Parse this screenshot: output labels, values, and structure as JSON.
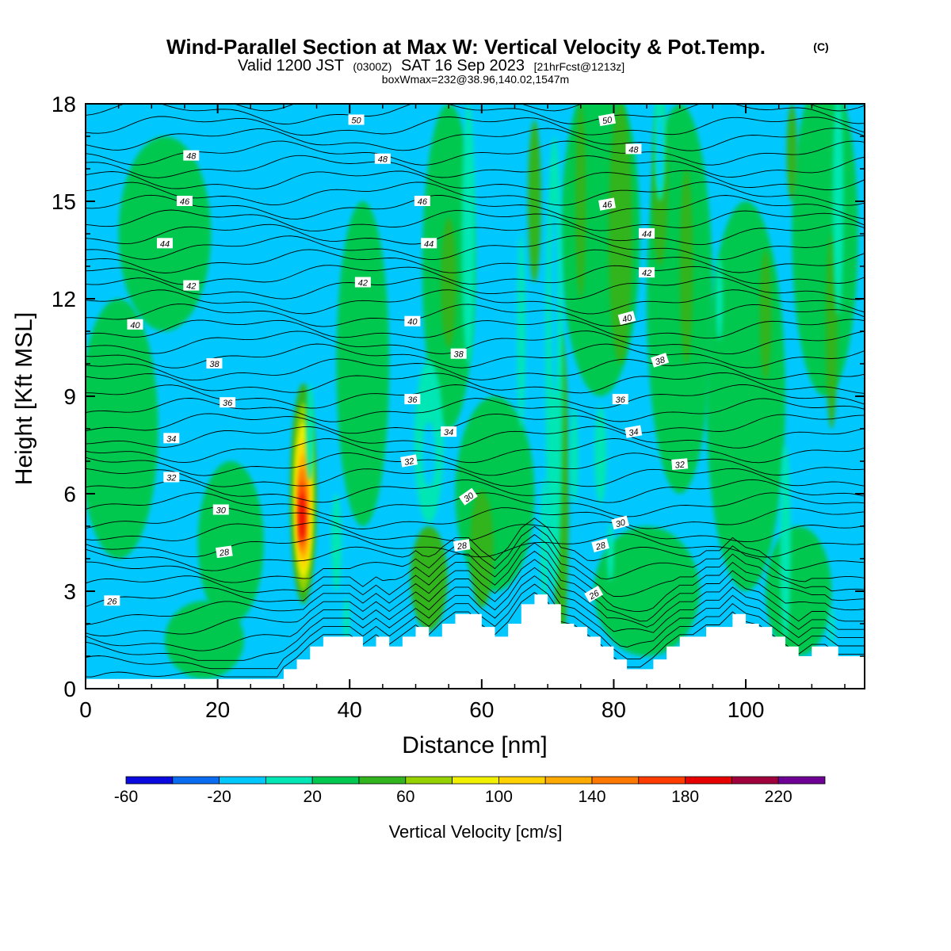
{
  "chart_data": {
    "type": "heatmap",
    "title": "Wind-Parallel Section at Max W: Vertical Velocity & Pot.Temp.",
    "title_mark": "(C)",
    "subtitle_main_a": "Valid 1200 JST",
    "subtitle_small_a": "(0300Z)",
    "subtitle_main_b": "SAT 16 Sep 2023",
    "subtitle_small_b": "[21hrFcst@1213z]",
    "subtitle2": "boxWmax=232@38.96,140.02,1547m",
    "xlabel": "Distance [nm]",
    "ylabel": "Height [Kft MSL]",
    "xlim": [
      0,
      118
    ],
    "ylim": [
      0,
      18
    ],
    "x_ticks": [
      0,
      20,
      40,
      60,
      80,
      100
    ],
    "y_ticks": [
      0,
      3,
      6,
      9,
      12,
      15,
      18
    ],
    "x_tick_labels": [
      "0",
      "20",
      "40",
      "60",
      "80",
      "100"
    ],
    "y_tick_labels": [
      "0",
      "3",
      "6",
      "9",
      "12",
      "15",
      "18"
    ],
    "colorbar": {
      "label": "Vertical Velocity [cm/s]",
      "levels": [
        -60,
        -40,
        -20,
        0,
        20,
        40,
        60,
        80,
        100,
        120,
        140,
        160,
        180,
        200,
        220,
        240
      ],
      "tick_values": [
        -60,
        -20,
        20,
        60,
        100,
        140,
        180,
        220
      ],
      "tick_labels": [
        "-60",
        "-20",
        "20",
        "60",
        "100",
        "140",
        "180",
        "220"
      ],
      "colors": [
        "#0a0ae0",
        "#0a6cf0",
        "#00c8ff",
        "#00e6b4",
        "#00c850",
        "#32b41e",
        "#96d200",
        "#f0f000",
        "#ffd200",
        "#ffaa00",
        "#ff7800",
        "#ff3c00",
        "#e60000",
        "#a0003c",
        "#6e0096"
      ],
      "background_color": "#00c8ff"
    },
    "terrain": [
      [
        0,
        0.3
      ],
      [
        4,
        0.3
      ],
      [
        10,
        0.3
      ],
      [
        20,
        0.3
      ],
      [
        29,
        0.3
      ],
      [
        30,
        0.6
      ],
      [
        32,
        0.9
      ],
      [
        34,
        1.3
      ],
      [
        36,
        1.6
      ],
      [
        40,
        1.6
      ],
      [
        42,
        1.3
      ],
      [
        44,
        1.6
      ],
      [
        46,
        1.3
      ],
      [
        48,
        1.6
      ],
      [
        50,
        1.9
      ],
      [
        52,
        1.6
      ],
      [
        54,
        2.0
      ],
      [
        56,
        2.3
      ],
      [
        58,
        2.3
      ],
      [
        60,
        1.9
      ],
      [
        62,
        1.6
      ],
      [
        64,
        2.0
      ],
      [
        66,
        2.6
      ],
      [
        68,
        2.9
      ],
      [
        70,
        2.6
      ],
      [
        72,
        2.0
      ],
      [
        74,
        1.9
      ],
      [
        76,
        1.6
      ],
      [
        78,
        1.3
      ],
      [
        80,
        0.9
      ],
      [
        82,
        0.6
      ],
      [
        84,
        0.6
      ],
      [
        86,
        0.9
      ],
      [
        88,
        1.3
      ],
      [
        90,
        1.6
      ],
      [
        92,
        1.6
      ],
      [
        94,
        1.9
      ],
      [
        96,
        1.9
      ],
      [
        98,
        2.3
      ],
      [
        100,
        2.0
      ],
      [
        102,
        1.9
      ],
      [
        104,
        1.6
      ],
      [
        106,
        1.3
      ],
      [
        108,
        1.0
      ],
      [
        110,
        1.3
      ],
      [
        112,
        1.3
      ],
      [
        114,
        1.0
      ],
      [
        116,
        1.0
      ],
      [
        118,
        1.0
      ]
    ],
    "w_features": [
      {
        "value": 20,
        "x": 5,
        "y": 8,
        "rx": 6,
        "ry": 4
      },
      {
        "value": 20,
        "x": 12,
        "y": 14,
        "rx": 7,
        "ry": 3
      },
      {
        "value": 20,
        "x": 22,
        "y": 4.5,
        "rx": 5,
        "ry": 2.5
      },
      {
        "value": 20,
        "x": 18,
        "y": 1.5,
        "rx": 6,
        "ry": 1.2
      },
      {
        "value": 20,
        "x": 42,
        "y": 10,
        "rx": 4,
        "ry": 5
      },
      {
        "value": 20,
        "x": 55,
        "y": 13,
        "rx": 4,
        "ry": 5
      },
      {
        "value": 20,
        "x": 62,
        "y": 6,
        "rx": 6,
        "ry": 3
      },
      {
        "value": 20,
        "x": 78,
        "y": 14,
        "rx": 6,
        "ry": 5
      },
      {
        "value": 20,
        "x": 90,
        "y": 12,
        "rx": 5,
        "ry": 6
      },
      {
        "value": 20,
        "x": 100,
        "y": 9,
        "rx": 6,
        "ry": 6
      },
      {
        "value": 20,
        "x": 112,
        "y": 14,
        "rx": 5,
        "ry": 5
      },
      {
        "value": 20,
        "x": 85,
        "y": 3,
        "rx": 8,
        "ry": 2
      },
      {
        "value": 20,
        "x": 108,
        "y": 3,
        "rx": 5,
        "ry": 2
      },
      {
        "value": 40,
        "x": 33,
        "y": 6,
        "rx": 2,
        "ry": 3.4
      },
      {
        "value": 40,
        "x": 55,
        "y": 12.5,
        "rx": 1.2,
        "ry": 2
      },
      {
        "value": 40,
        "x": 52,
        "y": 3.4,
        "rx": 2.8,
        "ry": 1.6
      },
      {
        "value": 40,
        "x": 60,
        "y": 4.3,
        "rx": 1.8,
        "ry": 1.8
      },
      {
        "value": 40,
        "x": 72,
        "y": 6,
        "rx": 1.2,
        "ry": 5
      },
      {
        "value": 40,
        "x": 81,
        "y": 14,
        "rx": 1.8,
        "ry": 4
      },
      {
        "value": 40,
        "x": 91,
        "y": 13,
        "rx": 1.0,
        "ry": 3
      },
      {
        "value": 40,
        "x": 103,
        "y": 11.5,
        "rx": 0.9,
        "ry": 2
      },
      {
        "value": 40,
        "x": 113,
        "y": 11,
        "rx": 0.9,
        "ry": 3
      },
      {
        "value": 40,
        "x": 68,
        "y": 15,
        "rx": 1.0,
        "ry": 2.5
      },
      {
        "value": 40,
        "x": 87,
        "y": 15.5,
        "rx": 1.2,
        "ry": 2.5
      },
      {
        "value": 40,
        "x": 75,
        "y": 15,
        "rx": 0.8,
        "ry": 3
      },
      {
        "value": 40,
        "x": 107,
        "y": 16.5,
        "rx": 0.8,
        "ry": 1.5
      },
      {
        "value": 60,
        "x": 33,
        "y": 5.9,
        "rx": 1.6,
        "ry": 2.9
      },
      {
        "value": 80,
        "x": 33,
        "y": 5.8,
        "rx": 1.3,
        "ry": 2.4
      },
      {
        "value": 100,
        "x": 33,
        "y": 5.7,
        "rx": 1.1,
        "ry": 2.0
      },
      {
        "value": 120,
        "x": 33,
        "y": 5.6,
        "rx": 0.9,
        "ry": 1.6
      },
      {
        "value": 140,
        "x": 32.8,
        "y": 5.5,
        "rx": 0.7,
        "ry": 1.3
      },
      {
        "value": 160,
        "x": 32.8,
        "y": 5.4,
        "rx": 0.5,
        "ry": 1.0
      },
      {
        "value": 180,
        "x": 32.8,
        "y": 5.3,
        "rx": 0.35,
        "ry": 0.7
      },
      {
        "value": 0,
        "x": 34,
        "y": 7.9,
        "rx": 0.6,
        "ry": 1.5
      },
      {
        "value": 0,
        "x": 38,
        "y": 4.5,
        "rx": 0.8,
        "ry": 1.5
      },
      {
        "value": 0,
        "x": 39.5,
        "y": 2.1,
        "rx": 0.5,
        "ry": 0.7
      },
      {
        "value": 0,
        "x": 52,
        "y": 7.6,
        "rx": 2.2,
        "ry": 2.5
      },
      {
        "value": 0,
        "x": 58,
        "y": 14,
        "rx": 1.0,
        "ry": 4
      },
      {
        "value": 0,
        "x": 66,
        "y": 11,
        "rx": 0.6,
        "ry": 3
      },
      {
        "value": 0,
        "x": 71,
        "y": 10,
        "rx": 1.3,
        "ry": 7
      },
      {
        "value": 0,
        "x": 74,
        "y": 7.2,
        "rx": 0.6,
        "ry": 1.5
      },
      {
        "value": 0,
        "x": 78,
        "y": 7.2,
        "rx": 0.9,
        "ry": 1.5
      },
      {
        "value": 0,
        "x": 87,
        "y": 17,
        "rx": 0.9,
        "ry": 2
      },
      {
        "value": 0,
        "x": 96,
        "y": 12,
        "rx": 0.5,
        "ry": 1.3
      },
      {
        "value": 0,
        "x": 106,
        "y": 4.5,
        "rx": 0.8,
        "ry": 3
      },
      {
        "value": 0,
        "x": 114,
        "y": 15,
        "rx": 0.8,
        "ry": 3.5
      },
      {
        "value": 0,
        "x": 113,
        "y": 1.9,
        "rx": 0.4,
        "ry": 0.6
      },
      {
        "value": 0,
        "x": 69.5,
        "y": 4.5,
        "rx": 0.6,
        "ry": 2
      },
      {
        "value": 0,
        "x": 79.5,
        "y": 4.2,
        "rx": 0.5,
        "ry": 0.9
      },
      {
        "value": -20,
        "x": 52,
        "y": 7.2,
        "rx": 1.0,
        "ry": 1.0
      },
      {
        "value": -20,
        "x": 71,
        "y": 12,
        "rx": 0.5,
        "ry": 3
      },
      {
        "value": -20,
        "x": 87,
        "y": 16.5,
        "rx": 0.4,
        "ry": 1.2
      }
    ],
    "theta_contours": [
      26,
      28,
      30,
      32,
      34,
      36,
      38,
      40,
      42,
      44,
      46,
      48,
      50
    ],
    "theta_labels": [
      {
        "text": "26",
        "x": 4,
        "y": 2.7,
        "angle": 0
      },
      {
        "text": "26",
        "x": 77,
        "y": 2.9,
        "angle": -30
      },
      {
        "text": "28",
        "x": 21,
        "y": 4.2,
        "angle": -8
      },
      {
        "text": "28",
        "x": 57,
        "y": 4.4,
        "angle": -8
      },
      {
        "text": "28",
        "x": 78,
        "y": 4.4,
        "angle": -15
      },
      {
        "text": "30",
        "x": 20.5,
        "y": 5.5,
        "angle": 0
      },
      {
        "text": "30",
        "x": 58,
        "y": 5.9,
        "angle": -35
      },
      {
        "text": "30",
        "x": 81,
        "y": 5.1,
        "angle": -15
      },
      {
        "text": "32",
        "x": 13,
        "y": 6.5,
        "angle": 0
      },
      {
        "text": "32",
        "x": 49,
        "y": 7.0,
        "angle": -10
      },
      {
        "text": "32",
        "x": 90,
        "y": 6.9,
        "angle": -5
      },
      {
        "text": "34",
        "x": 13,
        "y": 7.7,
        "angle": 0
      },
      {
        "text": "34",
        "x": 55,
        "y": 7.9,
        "angle": 0
      },
      {
        "text": "34",
        "x": 83,
        "y": 7.9,
        "angle": -10
      },
      {
        "text": "36",
        "x": 21.5,
        "y": 8.8,
        "angle": 0
      },
      {
        "text": "36",
        "x": 49.5,
        "y": 8.9,
        "angle": 0
      },
      {
        "text": "36",
        "x": 81,
        "y": 8.9,
        "angle": 0
      },
      {
        "text": "38",
        "x": 19.5,
        "y": 10.0,
        "angle": 0
      },
      {
        "text": "38",
        "x": 56.5,
        "y": 10.3,
        "angle": 0
      },
      {
        "text": "38",
        "x": 87,
        "y": 10.1,
        "angle": -18
      },
      {
        "text": "40",
        "x": 7.5,
        "y": 11.2,
        "angle": 0
      },
      {
        "text": "40",
        "x": 49.5,
        "y": 11.3,
        "angle": 0
      },
      {
        "text": "40",
        "x": 82,
        "y": 11.4,
        "angle": -15
      },
      {
        "text": "42",
        "x": 16,
        "y": 12.4,
        "angle": 0
      },
      {
        "text": "42",
        "x": 42,
        "y": 12.5,
        "angle": 0
      },
      {
        "text": "42",
        "x": 85,
        "y": 12.8,
        "angle": 0
      },
      {
        "text": "44",
        "x": 12,
        "y": 13.7,
        "angle": 0
      },
      {
        "text": "44",
        "x": 52,
        "y": 13.7,
        "angle": 0
      },
      {
        "text": "44",
        "x": 85,
        "y": 14.0,
        "angle": 0
      },
      {
        "text": "46",
        "x": 15,
        "y": 15.0,
        "angle": 0
      },
      {
        "text": "46",
        "x": 51,
        "y": 15.0,
        "angle": 0
      },
      {
        "text": "46",
        "x": 79,
        "y": 14.9,
        "angle": -10
      },
      {
        "text": "48",
        "x": 16,
        "y": 16.4,
        "angle": 0
      },
      {
        "text": "48",
        "x": 45,
        "y": 16.3,
        "angle": 0
      },
      {
        "text": "48",
        "x": 83,
        "y": 16.6,
        "angle": 0
      },
      {
        "text": "50",
        "x": 41,
        "y": 17.5,
        "angle": 0
      },
      {
        "text": "50",
        "x": 79,
        "y": 17.5,
        "angle": -10
      }
    ],
    "grid": false
  }
}
